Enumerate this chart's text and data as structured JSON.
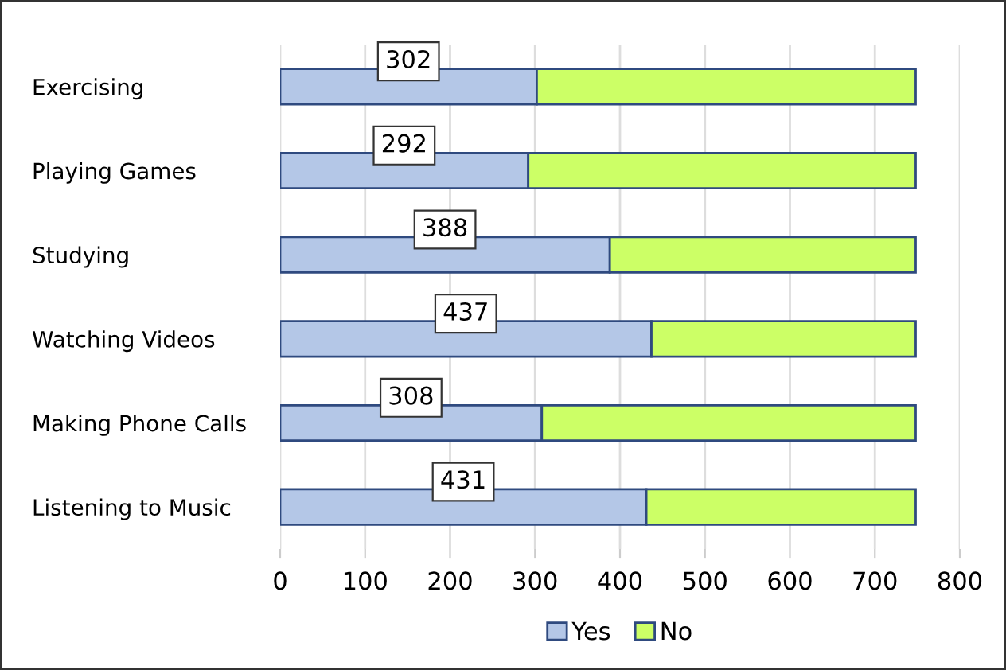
{
  "chart_data": {
    "type": "bar",
    "orientation": "horizontal",
    "stacked": true,
    "categories": [
      "Exercising",
      "Playing Games",
      "Studying",
      "Watching Videos",
      "Making Phone Calls",
      "Listening to Music"
    ],
    "series": [
      {
        "name": "Yes",
        "color": "#b4c7e7",
        "values": [
          302,
          292,
          388,
          437,
          308,
          431
        ],
        "value_labels": [
          "302",
          "292",
          "388",
          "437",
          "308",
          "431"
        ]
      },
      {
        "name": "No",
        "color": "#ccff66",
        "values": [
          446,
          456,
          360,
          311,
          440,
          317
        ]
      }
    ],
    "xlim": [
      0,
      800
    ],
    "xticks": [
      0,
      100,
      200,
      300,
      400,
      500,
      600,
      700,
      800
    ],
    "grid": "x",
    "legend": "bottom"
  }
}
